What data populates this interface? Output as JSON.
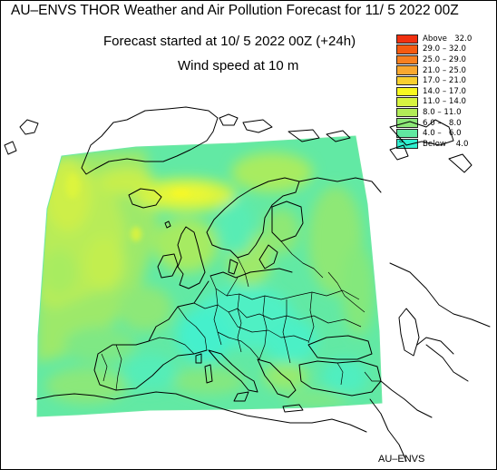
{
  "header": {
    "title": "AU–ENVS THOR Weather and Air Pollution Forecast for 11/ 5 2022  00Z",
    "subtitle": "Forecast started at 10/ 5 2022  00Z (+24h)",
    "variable": "Wind speed at 10 m"
  },
  "legend": {
    "items": [
      {
        "label": "Above   32.0",
        "color": "#f03010"
      },
      {
        "label": "29.0 – 32.0",
        "color": "#f55a10"
      },
      {
        "label": "25.0 – 29.0",
        "color": "#f78020"
      },
      {
        "label": "21.0 – 25.0",
        "color": "#f8a830"
      },
      {
        "label": "17.0 – 21.0",
        "color": "#f8d030"
      },
      {
        "label": "14.0 – 17.0",
        "color": "#f8f820"
      },
      {
        "label": "11.0 – 14.0",
        "color": "#d8f440"
      },
      {
        "label": "8.0 – 11.0",
        "color": "#b2ec58"
      },
      {
        "label": "6.0 –   8.0",
        "color": "#8ce878"
      },
      {
        "label": "4.0 –   6.0",
        "color": "#60e8a0"
      },
      {
        "label": "Below    4.0",
        "color": "#30f0d0",
        "marker": "a"
      }
    ]
  },
  "credit": "AU–ENVS"
}
